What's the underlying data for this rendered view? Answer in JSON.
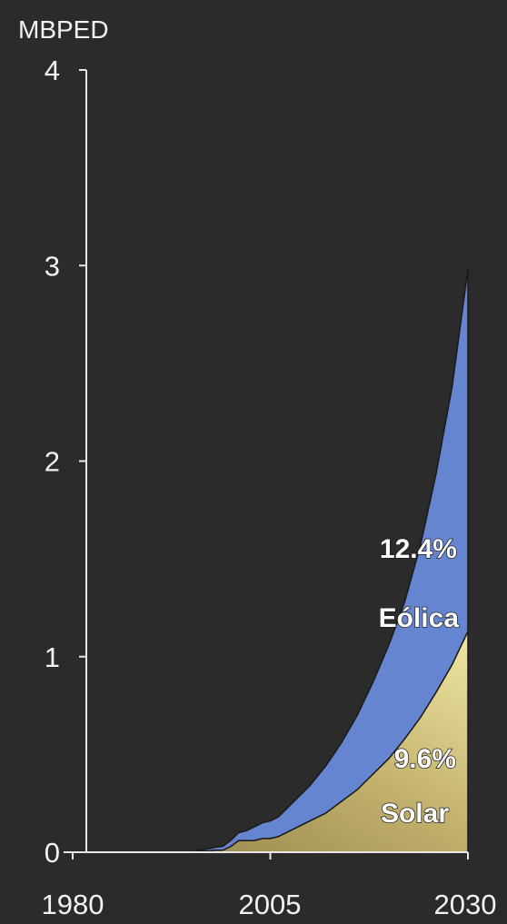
{
  "chart_data": {
    "type": "area",
    "stacked": true,
    "ylabel": "MBPED",
    "ylim": [
      0,
      4
    ],
    "xlim": [
      1980,
      2030
    ],
    "y_ticks": [
      {
        "value": 0,
        "label": "0"
      },
      {
        "value": 1,
        "label": "1"
      },
      {
        "value": 2,
        "label": "2"
      },
      {
        "value": 3,
        "label": "3"
      },
      {
        "value": 4,
        "label": "4"
      }
    ],
    "x_ticks": [
      {
        "value": 1980,
        "label": "1980"
      },
      {
        "value": 2005,
        "label": "2005"
      },
      {
        "value": 2030,
        "label": "2030"
      }
    ],
    "x": [
      1980,
      1985,
      1990,
      1995,
      1996,
      1997,
      1998,
      1999,
      2000,
      2001,
      2002,
      2003,
      2004,
      2005,
      2006,
      2008,
      2010,
      2012,
      2014,
      2016,
      2018,
      2020,
      2022,
      2024,
      2026,
      2028,
      2030
    ],
    "series": [
      {
        "name": "Solar",
        "color": "#c9b86f",
        "label": "Solar",
        "share_label": "9.6%",
        "values": [
          0,
          0,
          0,
          0,
          0.005,
          0.005,
          0.01,
          0.01,
          0.03,
          0.06,
          0.06,
          0.06,
          0.07,
          0.07,
          0.08,
          0.12,
          0.16,
          0.2,
          0.26,
          0.32,
          0.4,
          0.48,
          0.58,
          0.69,
          0.82,
          0.96,
          1.13
        ]
      },
      {
        "name": "Eólica",
        "color": "#6685d1",
        "label": "Eólica",
        "share_label": "12.4%",
        "values": [
          0,
          0,
          0,
          0,
          0.005,
          0.01,
          0.015,
          0.02,
          0.03,
          0.04,
          0.05,
          0.07,
          0.08,
          0.09,
          0.1,
          0.14,
          0.18,
          0.24,
          0.3,
          0.38,
          0.47,
          0.58,
          0.7,
          0.88,
          1.12,
          1.42,
          1.85
        ]
      }
    ]
  }
}
